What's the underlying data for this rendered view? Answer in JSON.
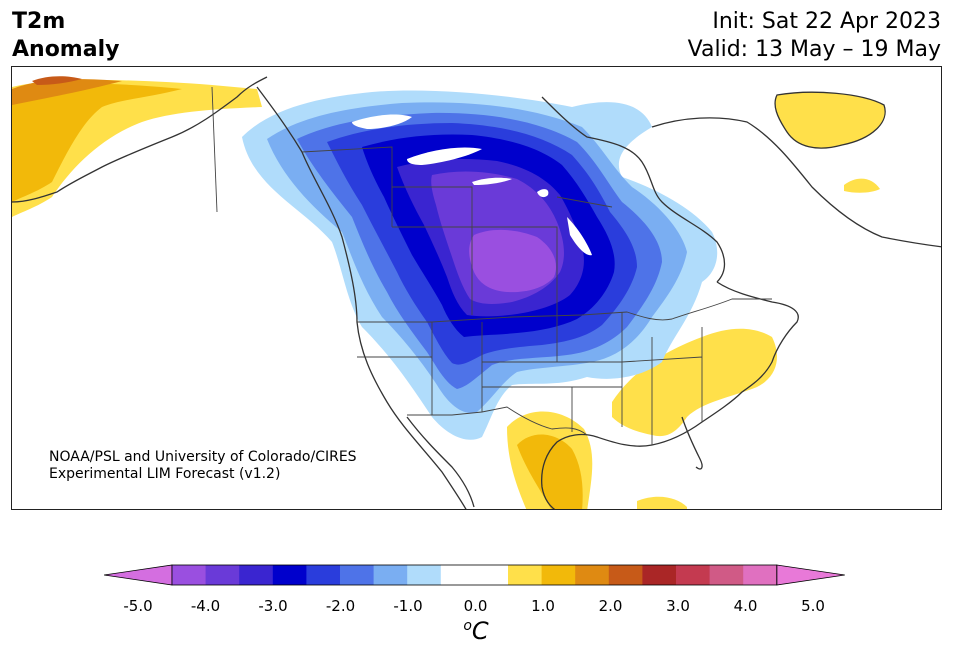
{
  "title": {
    "line1": "T2m",
    "line2": "Anomaly",
    "init": "Init: Sat 22 Apr 2023",
    "valid": "Valid: 13 May – 19 May"
  },
  "credit": {
    "line1": "NOAA/PSL and University of Colorado/CIRES",
    "line2": "Experimental LIM Forecast (v1.2)"
  },
  "colorbar": {
    "unit": "oC",
    "unit_sup": "o",
    "unit_main": "C",
    "colors": [
      "#9a4fe0",
      "#6a3ad8",
      "#3a25d0",
      "#0000cc",
      "#2a3ddc",
      "#4e73e8",
      "#7aaef2",
      "#b0dcfb",
      "#ffffff",
      "#ffffff",
      "#ffe04a",
      "#f2b90a",
      "#df8a12",
      "#c75a18",
      "#aa2626",
      "#c43a50",
      "#d05a86",
      "#e070c0"
    ],
    "under_color": "#d46ee0",
    "over_color": "#e879d8",
    "ticks": [
      "-5.0",
      "-4.0",
      "-3.0",
      "-2.0",
      "-1.0",
      "0.0",
      "1.0",
      "2.0",
      "3.0",
      "4.0",
      "5.0"
    ]
  },
  "map": {
    "cold_colors": [
      "#b0dcfb",
      "#7aaef2",
      "#4e73e8",
      "#2a3ddc",
      "#0000cc",
      "#3a25d0",
      "#6a3ad8",
      "#9a4fe0"
    ],
    "warm_colors": [
      "#ffe04a",
      "#f2b90a",
      "#df8a12",
      "#c75a18"
    ],
    "line_color": "#333333"
  }
}
